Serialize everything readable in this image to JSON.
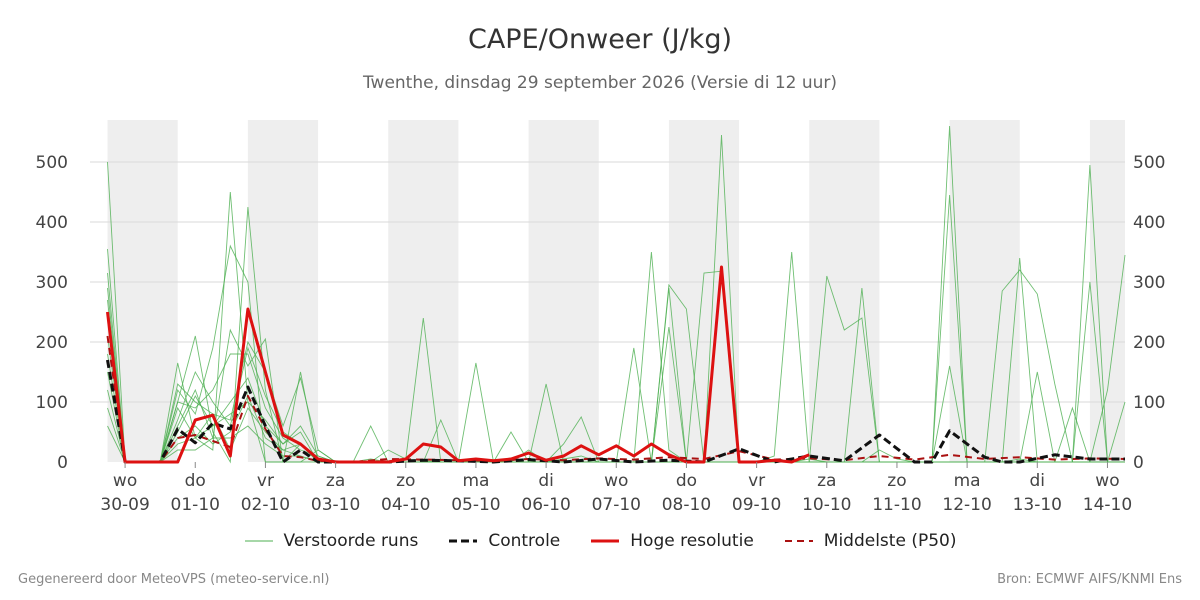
{
  "header": {
    "title": "CAPE/Onweer (J/kg)",
    "subtitle": "Twenthe, dinsdag 29 september 2026 (Versie di 12 uur)"
  },
  "footer": {
    "left": "Gegenereerd door MeteoVPS (meteo-service.nl)",
    "right": "Bron: ECMWF AIFS/KNMI Ens"
  },
  "legend": [
    {
      "label": "Verstoorde runs",
      "color": "#4caf50",
      "style": "thin"
    },
    {
      "label": "Controle",
      "color": "#111111",
      "style": "dashed"
    },
    {
      "label": "Hoge resolutie",
      "color": "#dd1111",
      "style": "solid"
    },
    {
      "label": "Middelste (P50)",
      "color": "#aa1111",
      "style": "dashed"
    }
  ],
  "chart_data": {
    "type": "line",
    "x_unit": "days since 2026-09-29 00:00",
    "xlim": [
      -0.25,
      14.5
    ],
    "ylim": [
      0,
      570
    ],
    "y_ticks": [
      0,
      100,
      200,
      300,
      400,
      500
    ],
    "grid": true,
    "weekend_shading": [
      [
        0,
        1
      ],
      [
        2,
        3
      ],
      [
        4,
        5
      ],
      [
        6,
        7
      ],
      [
        8,
        9
      ],
      [
        10,
        11
      ],
      [
        12,
        13
      ],
      [
        14,
        14.5
      ]
    ],
    "x_ticks": [
      {
        "x": 0.25,
        "day": "wo",
        "date": "30-09"
      },
      {
        "x": 1.25,
        "day": "do",
        "date": "01-10"
      },
      {
        "x": 2.25,
        "day": "vr",
        "date": "02-10"
      },
      {
        "x": 3.25,
        "day": "za",
        "date": "03-10"
      },
      {
        "x": 4.25,
        "day": "zo",
        "date": "04-10"
      },
      {
        "x": 5.25,
        "day": "ma",
        "date": "05-10"
      },
      {
        "x": 6.25,
        "day": "di",
        "date": "06-10"
      },
      {
        "x": 7.25,
        "day": "wo",
        "date": "07-10"
      },
      {
        "x": 8.25,
        "day": "do",
        "date": "08-10"
      },
      {
        "x": 9.25,
        "day": "vr",
        "date": "09-10"
      },
      {
        "x": 10.25,
        "day": "za",
        "date": "10-10"
      },
      {
        "x": 11.25,
        "day": "zo",
        "date": "11-10"
      },
      {
        "x": 12.25,
        "day": "ma",
        "date": "12-10"
      },
      {
        "x": 13.25,
        "day": "di",
        "date": "13-10"
      },
      {
        "x": 14.25,
        "day": "wo",
        "date": "14-10"
      }
    ],
    "series": [
      {
        "name": "Hoge resolutie",
        "color": "#dd1111",
        "x": [
          0,
          0.25,
          0.5,
          0.75,
          1.0,
          1.25,
          1.5,
          1.75,
          2.0,
          2.25,
          2.5,
          2.75,
          3.0,
          3.25,
          3.5,
          3.75,
          4.0,
          4.25,
          4.5,
          4.75,
          5.0,
          5.25,
          5.5,
          5.75,
          6.0,
          6.25,
          6.5,
          6.75,
          7.0,
          7.25,
          7.5,
          7.75,
          8.0,
          8.25,
          8.5,
          8.75,
          9.0,
          9.25,
          9.5,
          9.75,
          10.0
        ],
        "y": [
          250,
          0,
          0,
          0,
          0,
          70,
          78,
          10,
          255,
          150,
          45,
          30,
          5,
          0,
          0,
          0,
          0,
          5,
          30,
          25,
          2,
          5,
          2,
          5,
          15,
          3,
          10,
          27,
          12,
          27,
          10,
          30,
          12,
          0,
          0,
          325,
          0,
          0,
          3,
          0,
          12
        ]
      },
      {
        "name": "Controle",
        "color": "#111111",
        "x": [
          0,
          0.25,
          0.5,
          0.75,
          1.0,
          1.25,
          1.5,
          1.75,
          2.0,
          2.25,
          2.5,
          2.75,
          3.0,
          3.5,
          4.0,
          4.5,
          5.0,
          5.5,
          6.0,
          6.5,
          7.0,
          7.5,
          8.0,
          8.5,
          9.0,
          9.5,
          10.0,
          10.5,
          11.0,
          11.5,
          11.75,
          12.0,
          12.5,
          12.75,
          13.0,
          13.5,
          14.0,
          14.5
        ],
        "y": [
          170,
          0,
          0,
          0,
          55,
          32,
          65,
          55,
          125,
          60,
          0,
          20,
          0,
          0,
          0,
          3,
          2,
          0,
          4,
          0,
          5,
          0,
          3,
          0,
          22,
          0,
          10,
          2,
          45,
          0,
          0,
          52,
          8,
          0,
          0,
          12,
          5,
          5
        ]
      },
      {
        "name": "Middelste (P50)",
        "color": "#aa1111",
        "x": [
          0,
          0.25,
          0.5,
          0.75,
          1.0,
          1.25,
          1.5,
          1.75,
          2.0,
          2.25,
          2.5,
          2.75,
          3.0,
          3.5,
          4.0,
          4.5,
          5.0,
          5.5,
          6.0,
          6.5,
          7.0,
          7.5,
          8.0,
          8.5,
          9.0,
          9.5,
          10.0,
          10.5,
          11.0,
          11.5,
          12.0,
          12.5,
          13.0,
          13.5,
          14.0,
          14.5
        ],
        "y": [
          210,
          0,
          0,
          0,
          40,
          45,
          35,
          25,
          110,
          55,
          10,
          8,
          2,
          0,
          5,
          4,
          3,
          2,
          5,
          3,
          6,
          4,
          8,
          5,
          18,
          4,
          6,
          3,
          10,
          4,
          12,
          5,
          8,
          4,
          6,
          5
        ]
      }
    ],
    "ensemble": {
      "name": "Verstoorde runs",
      "color": "#4caf50",
      "x": [
        0,
        0.25,
        0.5,
        0.75,
        1.0,
        1.25,
        1.5,
        1.75,
        2.0,
        2.25,
        2.5,
        2.75,
        3.0,
        3.25,
        3.5,
        3.75,
        4.0,
        4.25,
        4.5,
        4.75,
        5.0,
        5.25,
        5.5,
        5.75,
        6.0,
        6.25,
        6.5,
        6.75,
        7.0,
        7.25,
        7.5,
        7.75,
        8.0,
        8.25,
        8.5,
        8.75,
        9.0,
        9.25,
        9.5,
        9.75,
        10.0,
        10.25,
        10.5,
        10.75,
        11.0,
        11.25,
        11.5,
        11.75,
        12.0,
        12.25,
        12.5,
        12.75,
        13.0,
        13.25,
        13.5,
        13.75,
        14.0,
        14.25,
        14.5
      ],
      "members": [
        [
          500,
          0,
          0,
          0,
          165,
          40,
          20,
          450,
          100,
          0,
          0,
          30,
          0,
          0,
          0,
          0,
          20,
          5,
          2,
          0,
          0,
          0,
          0,
          0,
          0,
          0,
          5,
          10,
          0,
          0,
          0,
          350,
          20,
          0,
          0,
          545,
          0,
          0,
          0,
          0,
          5,
          0,
          0,
          0,
          20,
          5,
          0,
          0,
          560,
          0,
          0,
          0,
          5,
          0,
          0,
          0,
          495,
          0,
          0
        ],
        [
          355,
          0,
          0,
          0,
          100,
          210,
          50,
          0,
          425,
          120,
          0,
          0,
          0,
          0,
          0,
          0,
          0,
          5,
          240,
          0,
          0,
          0,
          0,
          0,
          0,
          0,
          0,
          0,
          0,
          0,
          0,
          0,
          0,
          0,
          0,
          0,
          0,
          0,
          10,
          350,
          0,
          0,
          0,
          0,
          0,
          0,
          0,
          0,
          445,
          0,
          0,
          0,
          340,
          0,
          0,
          0,
          0,
          0,
          0
        ],
        [
          315,
          0,
          0,
          0,
          120,
          80,
          190,
          360,
          300,
          0,
          0,
          0,
          20,
          0,
          0,
          0,
          0,
          0,
          0,
          70,
          0,
          0,
          0,
          0,
          0,
          0,
          0,
          0,
          0,
          0,
          0,
          0,
          290,
          0,
          0,
          0,
          0,
          0,
          0,
          0,
          0,
          310,
          220,
          240,
          0,
          0,
          0,
          0,
          160,
          0,
          0,
          285,
          320,
          280,
          130,
          0,
          300,
          0,
          0
        ],
        [
          290,
          0,
          0,
          0,
          60,
          120,
          40,
          220,
          160,
          205,
          0,
          150,
          0,
          0,
          0,
          0,
          0,
          0,
          0,
          0,
          0,
          165,
          0,
          0,
          0,
          130,
          0,
          0,
          0,
          0,
          190,
          0,
          295,
          255,
          0,
          0,
          0,
          0,
          0,
          0,
          0,
          0,
          0,
          290,
          0,
          0,
          0,
          0,
          0,
          0,
          0,
          0,
          0,
          150,
          0,
          0,
          0,
          120,
          345
        ],
        [
          270,
          0,
          0,
          0,
          130,
          100,
          80,
          70,
          200,
          150,
          60,
          140,
          20,
          0,
          0,
          60,
          0,
          0,
          0,
          0,
          0,
          0,
          0,
          50,
          0,
          0,
          30,
          75,
          0,
          0,
          0,
          0,
          225,
          0,
          0,
          0,
          0,
          0,
          0,
          0,
          0,
          0,
          0,
          0,
          0,
          0,
          0,
          0,
          0,
          0,
          0,
          0,
          0,
          0,
          0,
          90,
          0,
          0,
          100
        ],
        [
          240,
          0,
          0,
          0,
          90,
          40,
          60,
          100,
          140,
          60,
          30,
          50,
          0,
          0,
          0,
          0,
          0,
          0,
          0,
          0,
          0,
          0,
          0,
          0,
          20,
          0,
          0,
          0,
          0,
          0,
          0,
          0,
          0,
          0,
          315,
          318,
          0,
          0,
          0,
          0,
          0,
          0,
          0,
          0,
          0,
          0,
          0,
          0,
          0,
          0,
          0,
          0,
          0,
          0,
          0,
          0,
          0,
          0,
          0
        ],
        [
          210,
          0,
          0,
          0,
          100,
          90,
          120,
          180,
          180,
          90,
          40,
          20,
          10,
          0,
          0,
          5,
          0,
          0,
          0,
          0,
          0,
          0,
          0,
          0,
          0,
          0,
          0,
          0,
          0,
          0,
          0,
          0,
          0,
          0,
          0,
          0,
          0,
          0,
          0,
          0,
          0,
          0,
          0,
          0,
          0,
          0,
          0,
          0,
          0,
          0,
          0,
          0,
          0,
          0,
          0,
          0,
          0,
          0,
          0
        ],
        [
          180,
          0,
          0,
          0,
          70,
          150,
          100,
          60,
          190,
          110,
          50,
          30,
          0,
          0,
          0,
          0,
          0,
          0,
          0,
          0,
          0,
          0,
          0,
          0,
          0,
          0,
          0,
          0,
          0,
          0,
          0,
          0,
          0,
          0,
          0,
          0,
          0,
          0,
          0,
          0,
          0,
          0,
          0,
          0,
          0,
          0,
          0,
          0,
          0,
          0,
          0,
          0,
          0,
          0,
          0,
          0,
          0,
          0,
          0
        ],
        [
          150,
          0,
          0,
          0,
          40,
          60,
          30,
          50,
          110,
          40,
          20,
          10,
          0,
          0,
          0,
          0,
          0,
          0,
          0,
          0,
          0,
          0,
          0,
          0,
          0,
          0,
          0,
          0,
          0,
          0,
          0,
          0,
          0,
          0,
          0,
          0,
          0,
          0,
          0,
          0,
          0,
          0,
          0,
          0,
          0,
          0,
          0,
          0,
          0,
          0,
          0,
          0,
          0,
          0,
          0,
          0,
          0,
          0,
          0
        ],
        [
          120,
          0,
          0,
          0,
          50,
          110,
          60,
          80,
          100,
          70,
          30,
          60,
          10,
          0,
          0,
          0,
          0,
          0,
          0,
          0,
          0,
          0,
          0,
          0,
          0,
          0,
          0,
          0,
          0,
          0,
          0,
          0,
          0,
          0,
          0,
          0,
          0,
          0,
          0,
          0,
          0,
          0,
          0,
          0,
          0,
          0,
          0,
          0,
          0,
          0,
          0,
          0,
          0,
          0,
          0,
          0,
          0,
          0,
          0
        ],
        [
          90,
          0,
          0,
          0,
          30,
          40,
          80,
          20,
          90,
          50,
          20,
          30,
          0,
          0,
          0,
          0,
          0,
          0,
          0,
          0,
          0,
          0,
          0,
          0,
          0,
          0,
          0,
          0,
          0,
          0,
          0,
          0,
          0,
          0,
          0,
          0,
          0,
          0,
          0,
          0,
          0,
          0,
          0,
          0,
          0,
          0,
          0,
          0,
          0,
          0,
          0,
          0,
          0,
          0,
          0,
          0,
          0,
          0,
          0
        ],
        [
          60,
          0,
          0,
          0,
          20,
          20,
          40,
          40,
          60,
          30,
          10,
          10,
          0,
          0,
          0,
          0,
          0,
          0,
          0,
          0,
          0,
          0,
          0,
          0,
          0,
          0,
          0,
          0,
          0,
          0,
          0,
          0,
          0,
          0,
          0,
          0,
          0,
          0,
          0,
          0,
          0,
          0,
          0,
          0,
          0,
          0,
          0,
          0,
          0,
          0,
          0,
          0,
          0,
          0,
          0,
          0,
          0,
          0,
          0
        ]
      ]
    }
  }
}
